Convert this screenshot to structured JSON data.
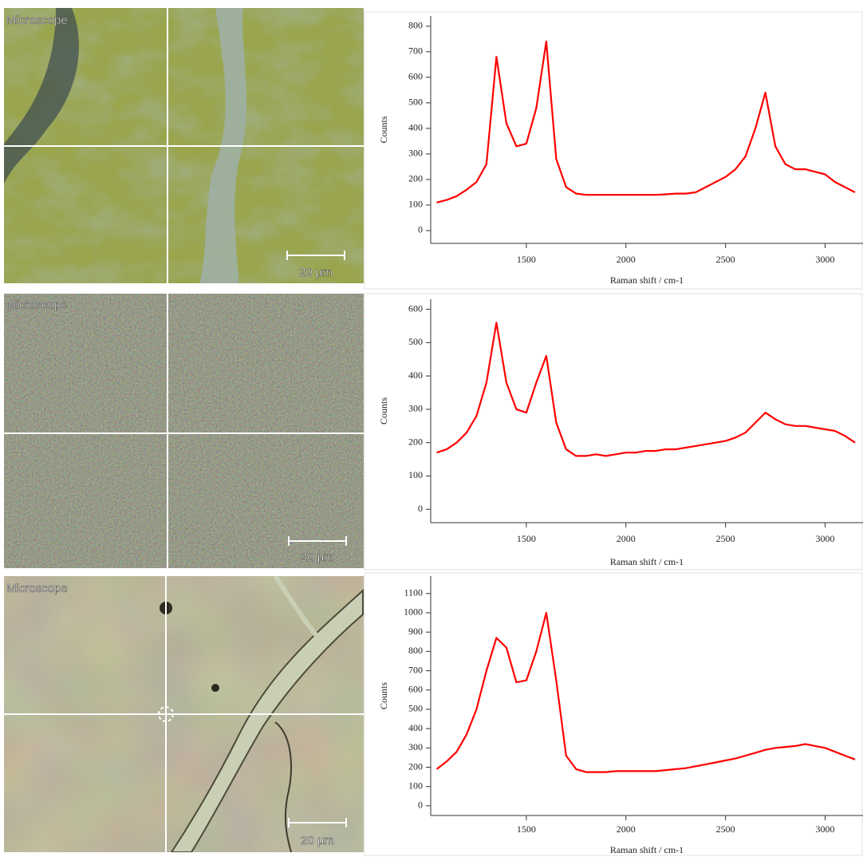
{
  "images": [
    {
      "label": "Microscope",
      "scale_bar": "20 µm"
    },
    {
      "label": "Microscope",
      "scale_bar": "20 µm"
    },
    {
      "label": "Microscope",
      "scale_bar": "20 µm"
    }
  ],
  "chart_data": [
    {
      "type": "line",
      "color": "#ff0000",
      "ylabel": "Counts",
      "xlabel": "Raman shift / cm-1",
      "xlim": [
        1020,
        3190
      ],
      "xticks": [
        1500,
        2000,
        2500,
        3000
      ],
      "ylim": [
        -50,
        840
      ],
      "yticks": [
        0,
        100,
        200,
        300,
        400,
        500,
        600,
        700,
        800
      ],
      "x": [
        1050,
        1100,
        1150,
        1200,
        1250,
        1300,
        1350,
        1400,
        1450,
        1500,
        1550,
        1600,
        1650,
        1700,
        1750,
        1800,
        1850,
        1900,
        1950,
        2000,
        2050,
        2100,
        2150,
        2200,
        2250,
        2300,
        2350,
        2400,
        2450,
        2500,
        2550,
        2600,
        2650,
        2700,
        2750,
        2800,
        2850,
        2900,
        2950,
        3000,
        3050,
        3100,
        3150
      ],
      "values": [
        110,
        120,
        135,
        160,
        190,
        260,
        680,
        420,
        330,
        340,
        480,
        740,
        280,
        170,
        145,
        140,
        140,
        140,
        140,
        140,
        140,
        140,
        140,
        142,
        145,
        145,
        150,
        170,
        190,
        210,
        240,
        290,
        400,
        540,
        330,
        260,
        240,
        240,
        230,
        220,
        190,
        170,
        150
      ]
    },
    {
      "type": "line",
      "color": "#ff0000",
      "ylabel": "Counts",
      "xlabel": "Raman shift / cm-1",
      "xlim": [
        1020,
        3190
      ],
      "xticks": [
        1500,
        2000,
        2500,
        3000
      ],
      "ylim": [
        -40,
        630
      ],
      "yticks": [
        0,
        100,
        200,
        300,
        400,
        500,
        600
      ],
      "x": [
        1050,
        1100,
        1150,
        1200,
        1250,
        1300,
        1350,
        1400,
        1450,
        1500,
        1550,
        1600,
        1650,
        1700,
        1750,
        1800,
        1850,
        1900,
        1950,
        2000,
        2050,
        2100,
        2150,
        2200,
        2250,
        2300,
        2350,
        2400,
        2450,
        2500,
        2550,
        2600,
        2650,
        2700,
        2750,
        2800,
        2850,
        2900,
        2950,
        3000,
        3050,
        3100,
        3150
      ],
      "values": [
        170,
        180,
        200,
        230,
        280,
        380,
        560,
        380,
        300,
        290,
        380,
        460,
        260,
        180,
        160,
        160,
        165,
        160,
        165,
        170,
        170,
        175,
        175,
        180,
        180,
        185,
        190,
        195,
        200,
        205,
        215,
        230,
        260,
        290,
        270,
        255,
        250,
        250,
        245,
        240,
        235,
        220,
        200
      ]
    },
    {
      "type": "line",
      "color": "#ff0000",
      "ylabel": "Counts",
      "xlabel": "Raman shift / cm-1",
      "xlim": [
        1020,
        3190
      ],
      "xticks": [
        1500,
        2000,
        2500,
        3000
      ],
      "ylim": [
        -50,
        1190
      ],
      "yticks": [
        0,
        100,
        200,
        300,
        400,
        500,
        600,
        700,
        800,
        900,
        1000,
        1100
      ],
      "x": [
        1050,
        1100,
        1150,
        1200,
        1250,
        1300,
        1350,
        1400,
        1450,
        1500,
        1550,
        1600,
        1650,
        1700,
        1750,
        1800,
        1850,
        1900,
        1950,
        2000,
        2050,
        2100,
        2150,
        2200,
        2250,
        2300,
        2350,
        2400,
        2450,
        2500,
        2550,
        2600,
        2650,
        2700,
        2750,
        2800,
        2850,
        2900,
        2950,
        3000,
        3050,
        3100,
        3150
      ],
      "values": [
        190,
        230,
        280,
        370,
        500,
        700,
        870,
        820,
        640,
        650,
        800,
        1000,
        650,
        260,
        190,
        175,
        175,
        175,
        180,
        180,
        180,
        180,
        180,
        185,
        190,
        195,
        205,
        215,
        225,
        235,
        245,
        260,
        275,
        290,
        300,
        305,
        310,
        320,
        310,
        300,
        280,
        260,
        240
      ]
    }
  ]
}
